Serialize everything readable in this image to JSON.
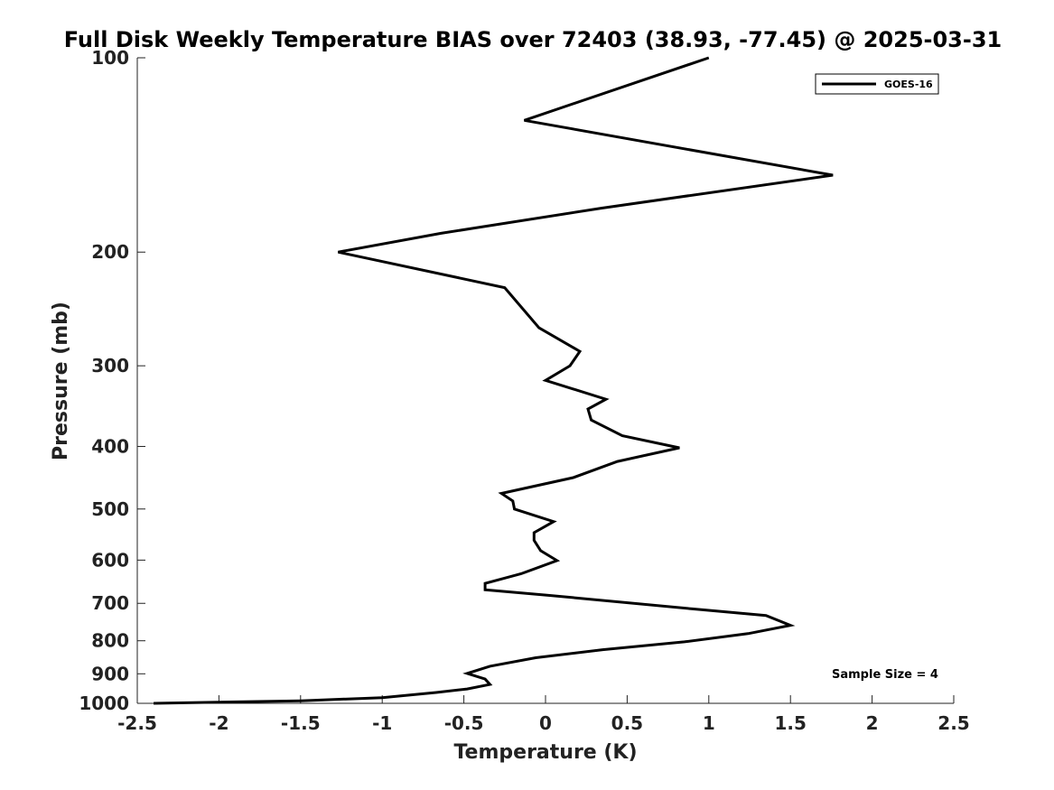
{
  "chart_data": {
    "type": "line",
    "title": "Full Disk Weekly Temperature BIAS over 72403 (38.93, -77.45) @ 2025-03-31",
    "xlabel": "Temperature (K)",
    "ylabel": "Pressure (mb)",
    "xlim": [
      -2.5,
      2.5
    ],
    "ylim": [
      100,
      1000
    ],
    "yscale": "log",
    "yreversed": true,
    "xticks": [
      -2.5,
      -2,
      -1.5,
      -1,
      -0.5,
      0,
      0.5,
      1,
      1.5,
      2,
      2.5
    ],
    "xtick_labels": [
      "-2.5",
      "-2",
      "-1.5",
      "-1",
      "-0.5",
      "0",
      "0.5",
      "1",
      "1.5",
      "2",
      "2.5"
    ],
    "yticks": [
      100,
      200,
      300,
      400,
      500,
      600,
      700,
      800,
      900,
      1000
    ],
    "ytick_labels": [
      "100",
      "200",
      "300",
      "400",
      "500",
      "600",
      "700",
      "800",
      "900",
      "1000"
    ],
    "grid": false,
    "legend_position": "top-right",
    "series": [
      {
        "name": "GOES-16",
        "color": "#000000",
        "points": [
          [
            1.0,
            100
          ],
          [
            -0.13,
            125
          ],
          [
            1.76,
            152
          ],
          [
            0.34,
            171
          ],
          [
            -0.64,
            187
          ],
          [
            -1.27,
            200
          ],
          [
            -0.25,
            227
          ],
          [
            -0.04,
            262
          ],
          [
            0.21,
            285
          ],
          [
            0.15,
            300
          ],
          [
            0.0,
            316
          ],
          [
            0.37,
            338
          ],
          [
            0.26,
            350
          ],
          [
            0.28,
            364
          ],
          [
            0.47,
            385
          ],
          [
            0.82,
            402
          ],
          [
            0.44,
            422
          ],
          [
            0.17,
            447
          ],
          [
            -0.27,
            473
          ],
          [
            -0.2,
            486
          ],
          [
            -0.19,
            500
          ],
          [
            0.05,
            523
          ],
          [
            -0.07,
            544
          ],
          [
            -0.07,
            559
          ],
          [
            -0.03,
            580
          ],
          [
            0.07,
            601
          ],
          [
            -0.15,
            630
          ],
          [
            -0.37,
            652
          ],
          [
            -0.37,
            667
          ],
          [
            0.01,
            680
          ],
          [
            0.9,
            714
          ],
          [
            1.35,
            731
          ],
          [
            1.5,
            757
          ],
          [
            1.24,
            780
          ],
          [
            0.85,
            803
          ],
          [
            0.35,
            826
          ],
          [
            -0.06,
            850
          ],
          [
            -0.34,
            876
          ],
          [
            -0.48,
            899
          ],
          [
            -0.37,
            917
          ],
          [
            -0.34,
            935
          ],
          [
            -0.48,
            950
          ],
          [
            -0.67,
            962
          ],
          [
            -1.0,
            980
          ],
          [
            -1.5,
            991
          ],
          [
            -2.4,
            1000
          ]
        ]
      }
    ],
    "annotations": [
      "Sample Size = 4"
    ]
  }
}
